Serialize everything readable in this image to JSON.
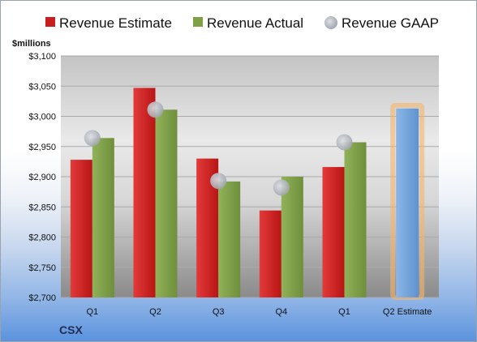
{
  "chart_data": {
    "type": "bar",
    "ylabel": "$millions",
    "ylim": [
      2700,
      3100
    ],
    "ytick_step": 50,
    "y_tick_labels": [
      "$2,700",
      "$2,750",
      "$2,800",
      "$2,850",
      "$2,900",
      "$2,950",
      "$3,000",
      "$3,050",
      "$3,100"
    ],
    "categories": [
      "Q1",
      "Q2",
      "Q3",
      "Q4",
      "Q1",
      "Q2 Estimate"
    ],
    "series": [
      {
        "name": "Revenue Estimate",
        "color": "#c81e1e",
        "values": [
          2928,
          3047,
          2930,
          2844,
          2916,
          null
        ]
      },
      {
        "name": "Revenue Actual",
        "color": "#80a048",
        "values": [
          2964,
          3011,
          2892,
          2900,
          2957,
          null
        ]
      },
      {
        "name": "Revenue GAAP",
        "color": "#b4b8c0",
        "marker": "circle",
        "values": [
          2964,
          3011,
          2893,
          2882,
          2957,
          null
        ]
      }
    ],
    "forecast": {
      "category": "Q2 Estimate",
      "value": 3013,
      "color": "#7aa8dc",
      "glow": "#f5b56a"
    },
    "legend_position": "top",
    "grid": true
  },
  "company": "CSX"
}
